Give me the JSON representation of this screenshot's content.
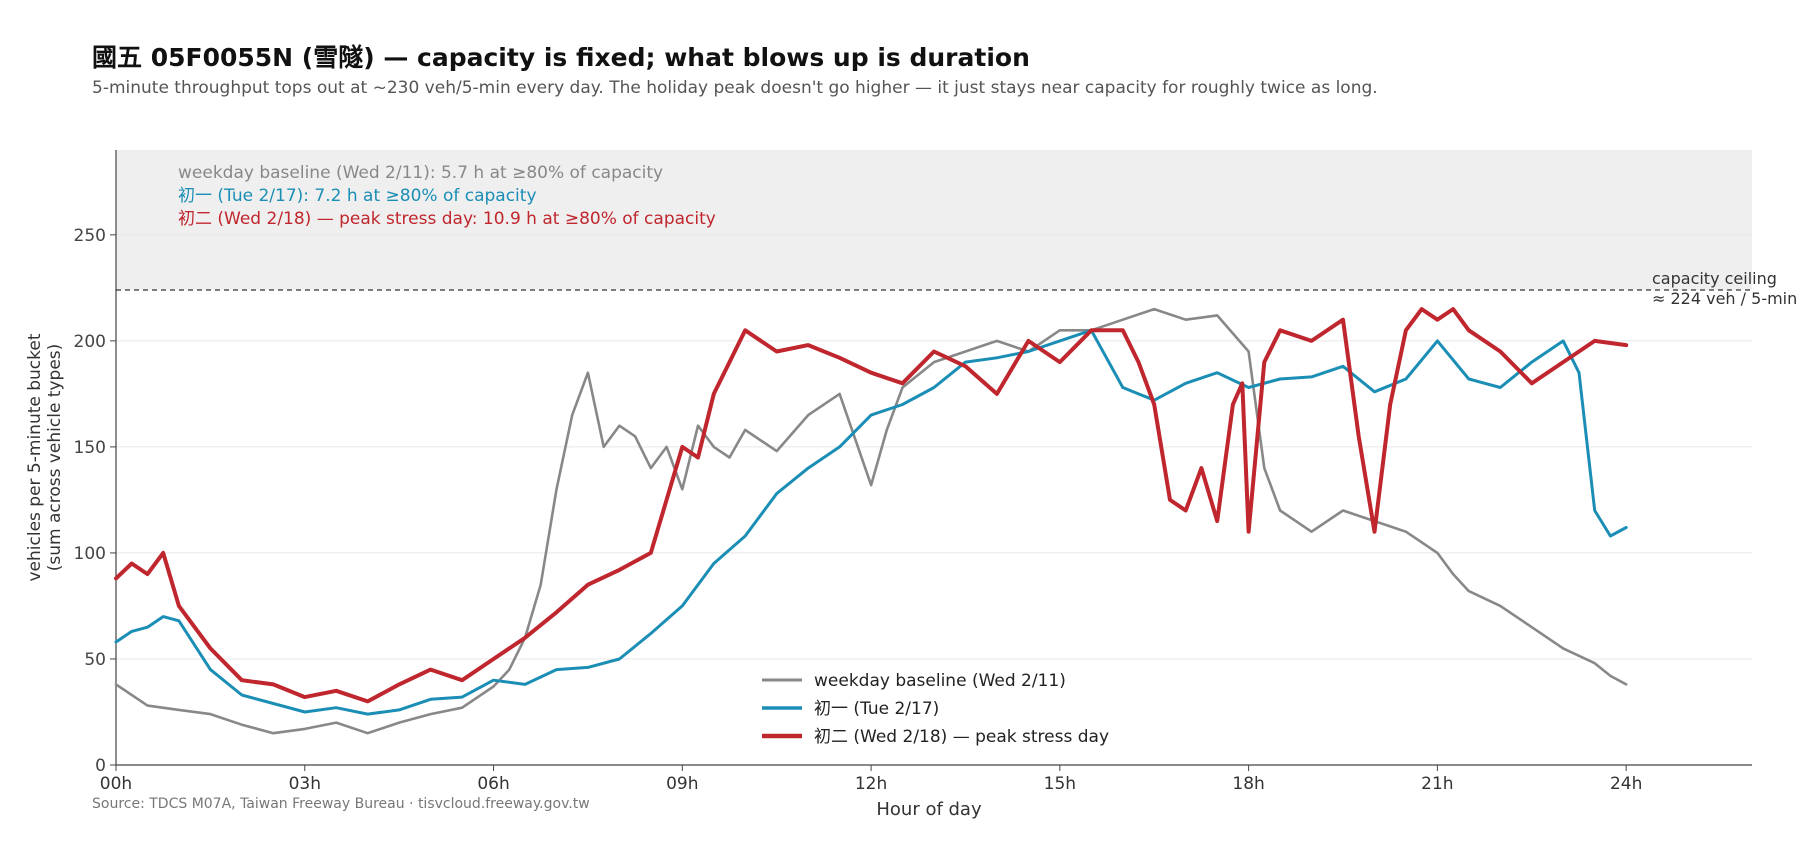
{
  "title": "國五 05F0055N (雪隧) — capacity is fixed; what blows up is duration",
  "subtitle": "5-minute throughput tops out at ~230 veh/5-min every day. The holiday peak doesn't go higher — it just stays near capacity for roughly twice as long.",
  "source": "Source: TDCS M07A, Taiwan Freeway Bureau  ·  tisvcloud.freeway.gov.tw",
  "colors": {
    "weekday": "#888888",
    "chuyi": "#1b8eb5",
    "chuer": "#c0262d",
    "band": "#efefef"
  },
  "chart_data": {
    "type": "line",
    "xlabel": "Hour of day",
    "ylabel": "vehicles per 5-minute bucket",
    "ylabel2": "(sum across vehicle types)",
    "xlim": [
      0,
      26
    ],
    "ylim": [
      0,
      290
    ],
    "x_ticks": [
      {
        "v": 0,
        "label": "00h"
      },
      {
        "v": 3,
        "label": "03h"
      },
      {
        "v": 6,
        "label": "06h"
      },
      {
        "v": 9,
        "label": "09h"
      },
      {
        "v": 12,
        "label": "12h"
      },
      {
        "v": 15,
        "label": "15h"
      },
      {
        "v": 18,
        "label": "18h"
      },
      {
        "v": 21,
        "label": "21h"
      },
      {
        "v": 24,
        "label": "24h"
      }
    ],
    "y_ticks": [
      0,
      50,
      100,
      150,
      200,
      250
    ],
    "grid": "horizontal",
    "capacity_ceiling": 224,
    "capacity_label_1": "capacity ceiling",
    "capacity_label_2": "≈ 224 veh / 5-min",
    "annotations": [
      "weekday baseline (Wed 2/11):  5.7 h at ≥80% of capacity",
      "初一 (Tue 2/17):  7.2 h at ≥80% of capacity",
      "初二 (Wed 2/18) — peak stress day:  10.9 h at ≥80% of capacity"
    ],
    "legend_position": "bottom-center",
    "series": [
      {
        "name": "weekday baseline (Wed 2/11)",
        "key": "weekday",
        "x": [
          0,
          0.5,
          1,
          1.5,
          2,
          2.5,
          3,
          3.5,
          4,
          4.5,
          5,
          5.5,
          6,
          6.25,
          6.5,
          6.75,
          7,
          7.25,
          7.5,
          7.75,
          8,
          8.25,
          8.5,
          8.75,
          9,
          9.25,
          9.5,
          9.75,
          10,
          10.5,
          11,
          11.5,
          12,
          12.25,
          12.5,
          13,
          13.5,
          14,
          14.5,
          15,
          15.5,
          16,
          16.5,
          17,
          17.5,
          18,
          18.25,
          18.5,
          18.75,
          19,
          19.5,
          20,
          20.5,
          21,
          21.25,
          21.5,
          22,
          22.5,
          23,
          23.5,
          23.75,
          24
        ],
        "y": [
          38,
          28,
          26,
          24,
          19,
          15,
          17,
          20,
          15,
          20,
          24,
          27,
          37,
          45,
          60,
          85,
          130,
          165,
          185,
          150,
          160,
          155,
          140,
          150,
          130,
          160,
          150,
          145,
          158,
          148,
          165,
          175,
          132,
          158,
          178,
          190,
          195,
          200,
          195,
          205,
          205,
          210,
          215,
          210,
          212,
          195,
          140,
          120,
          115,
          110,
          120,
          115,
          110,
          100,
          90,
          82,
          75,
          65,
          55,
          48,
          42,
          38
        ]
      },
      {
        "name": "初一 (Tue 2/17)",
        "key": "chuyi",
        "x": [
          0,
          0.25,
          0.5,
          0.75,
          1,
          1.5,
          2,
          2.5,
          3,
          3.5,
          4,
          4.5,
          5,
          5.5,
          6,
          6.5,
          7,
          7.5,
          8,
          8.5,
          9,
          9.5,
          10,
          10.5,
          11,
          11.5,
          12,
          12.5,
          13,
          13.5,
          14,
          14.5,
          15,
          15.5,
          16,
          16.5,
          17,
          17.5,
          18,
          18.5,
          19,
          19.5,
          20,
          20.5,
          21,
          21.5,
          22,
          22.5,
          23,
          23.25,
          23.5,
          23.75,
          24
        ],
        "y": [
          58,
          63,
          65,
          70,
          68,
          45,
          33,
          29,
          25,
          27,
          24,
          26,
          31,
          32,
          40,
          38,
          45,
          46,
          50,
          62,
          75,
          95,
          108,
          128,
          140,
          150,
          165,
          170,
          178,
          190,
          192,
          195,
          200,
          205,
          178,
          172,
          180,
          185,
          178,
          182,
          183,
          188,
          176,
          182,
          200,
          182,
          178,
          190,
          200,
          185,
          120,
          108,
          112
        ]
      },
      {
        "name": "初二 (Wed 2/18) — peak stress day",
        "key": "chuer",
        "x": [
          0,
          0.25,
          0.5,
          0.75,
          1,
          1.5,
          2,
          2.5,
          3,
          3.5,
          4,
          4.5,
          5,
          5.5,
          6,
          6.5,
          7,
          7.5,
          8,
          8.5,
          9,
          9.25,
          9.5,
          9.75,
          10,
          10.5,
          11,
          11.5,
          12,
          12.5,
          13,
          13.5,
          14,
          14.5,
          15,
          15.5,
          16,
          16.25,
          16.5,
          16.75,
          17,
          17.25,
          17.5,
          17.75,
          17.9,
          18,
          18.25,
          18.5,
          19,
          19.5,
          19.75,
          20,
          20.25,
          20.5,
          20.75,
          21,
          21.25,
          21.5,
          22,
          22.5,
          23,
          23.5,
          24
        ],
        "y": [
          88,
          95,
          90,
          100,
          75,
          55,
          40,
          38,
          32,
          35,
          30,
          38,
          45,
          40,
          50,
          60,
          72,
          85,
          92,
          100,
          150,
          145,
          175,
          190,
          205,
          195,
          198,
          192,
          185,
          180,
          195,
          188,
          175,
          200,
          190,
          205,
          205,
          190,
          170,
          125,
          120,
          140,
          115,
          170,
          180,
          110,
          190,
          205,
          200,
          210,
          155,
          110,
          170,
          205,
          215,
          210,
          215,
          205,
          195,
          180,
          190,
          200,
          198
        ]
      }
    ]
  }
}
